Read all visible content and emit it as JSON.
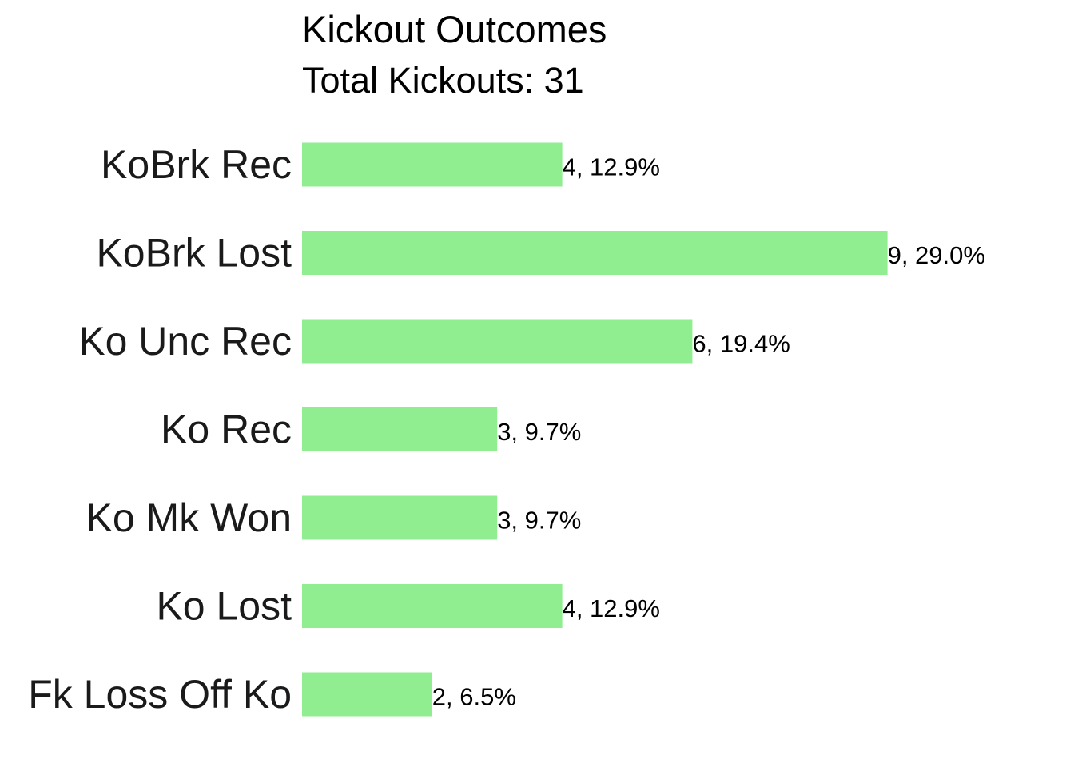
{
  "chart_data": {
    "type": "bar",
    "orientation": "horizontal",
    "title": "Kickout Outcomes",
    "subtitle": "Total Kickouts: 31",
    "categories": [
      "KoBrk Rec",
      "KoBrk Lost",
      "Ko Unc Rec",
      "Ko Rec",
      "Ko Mk Won",
      "Ko Lost",
      "Fk Loss Off Ko"
    ],
    "values": [
      4,
      9,
      6,
      3,
      3,
      4,
      2
    ],
    "data_labels": [
      "4, 12.9%",
      "9, 29.0%",
      "6, 19.4%",
      "3, 9.7%",
      "3, 9.7%",
      "4, 12.9%",
      "2, 6.5%"
    ],
    "xlabel": "",
    "ylabel": "",
    "xlim": [
      0,
      9
    ],
    "grid": false,
    "legend": "none",
    "bar_color": "#90EE90"
  }
}
